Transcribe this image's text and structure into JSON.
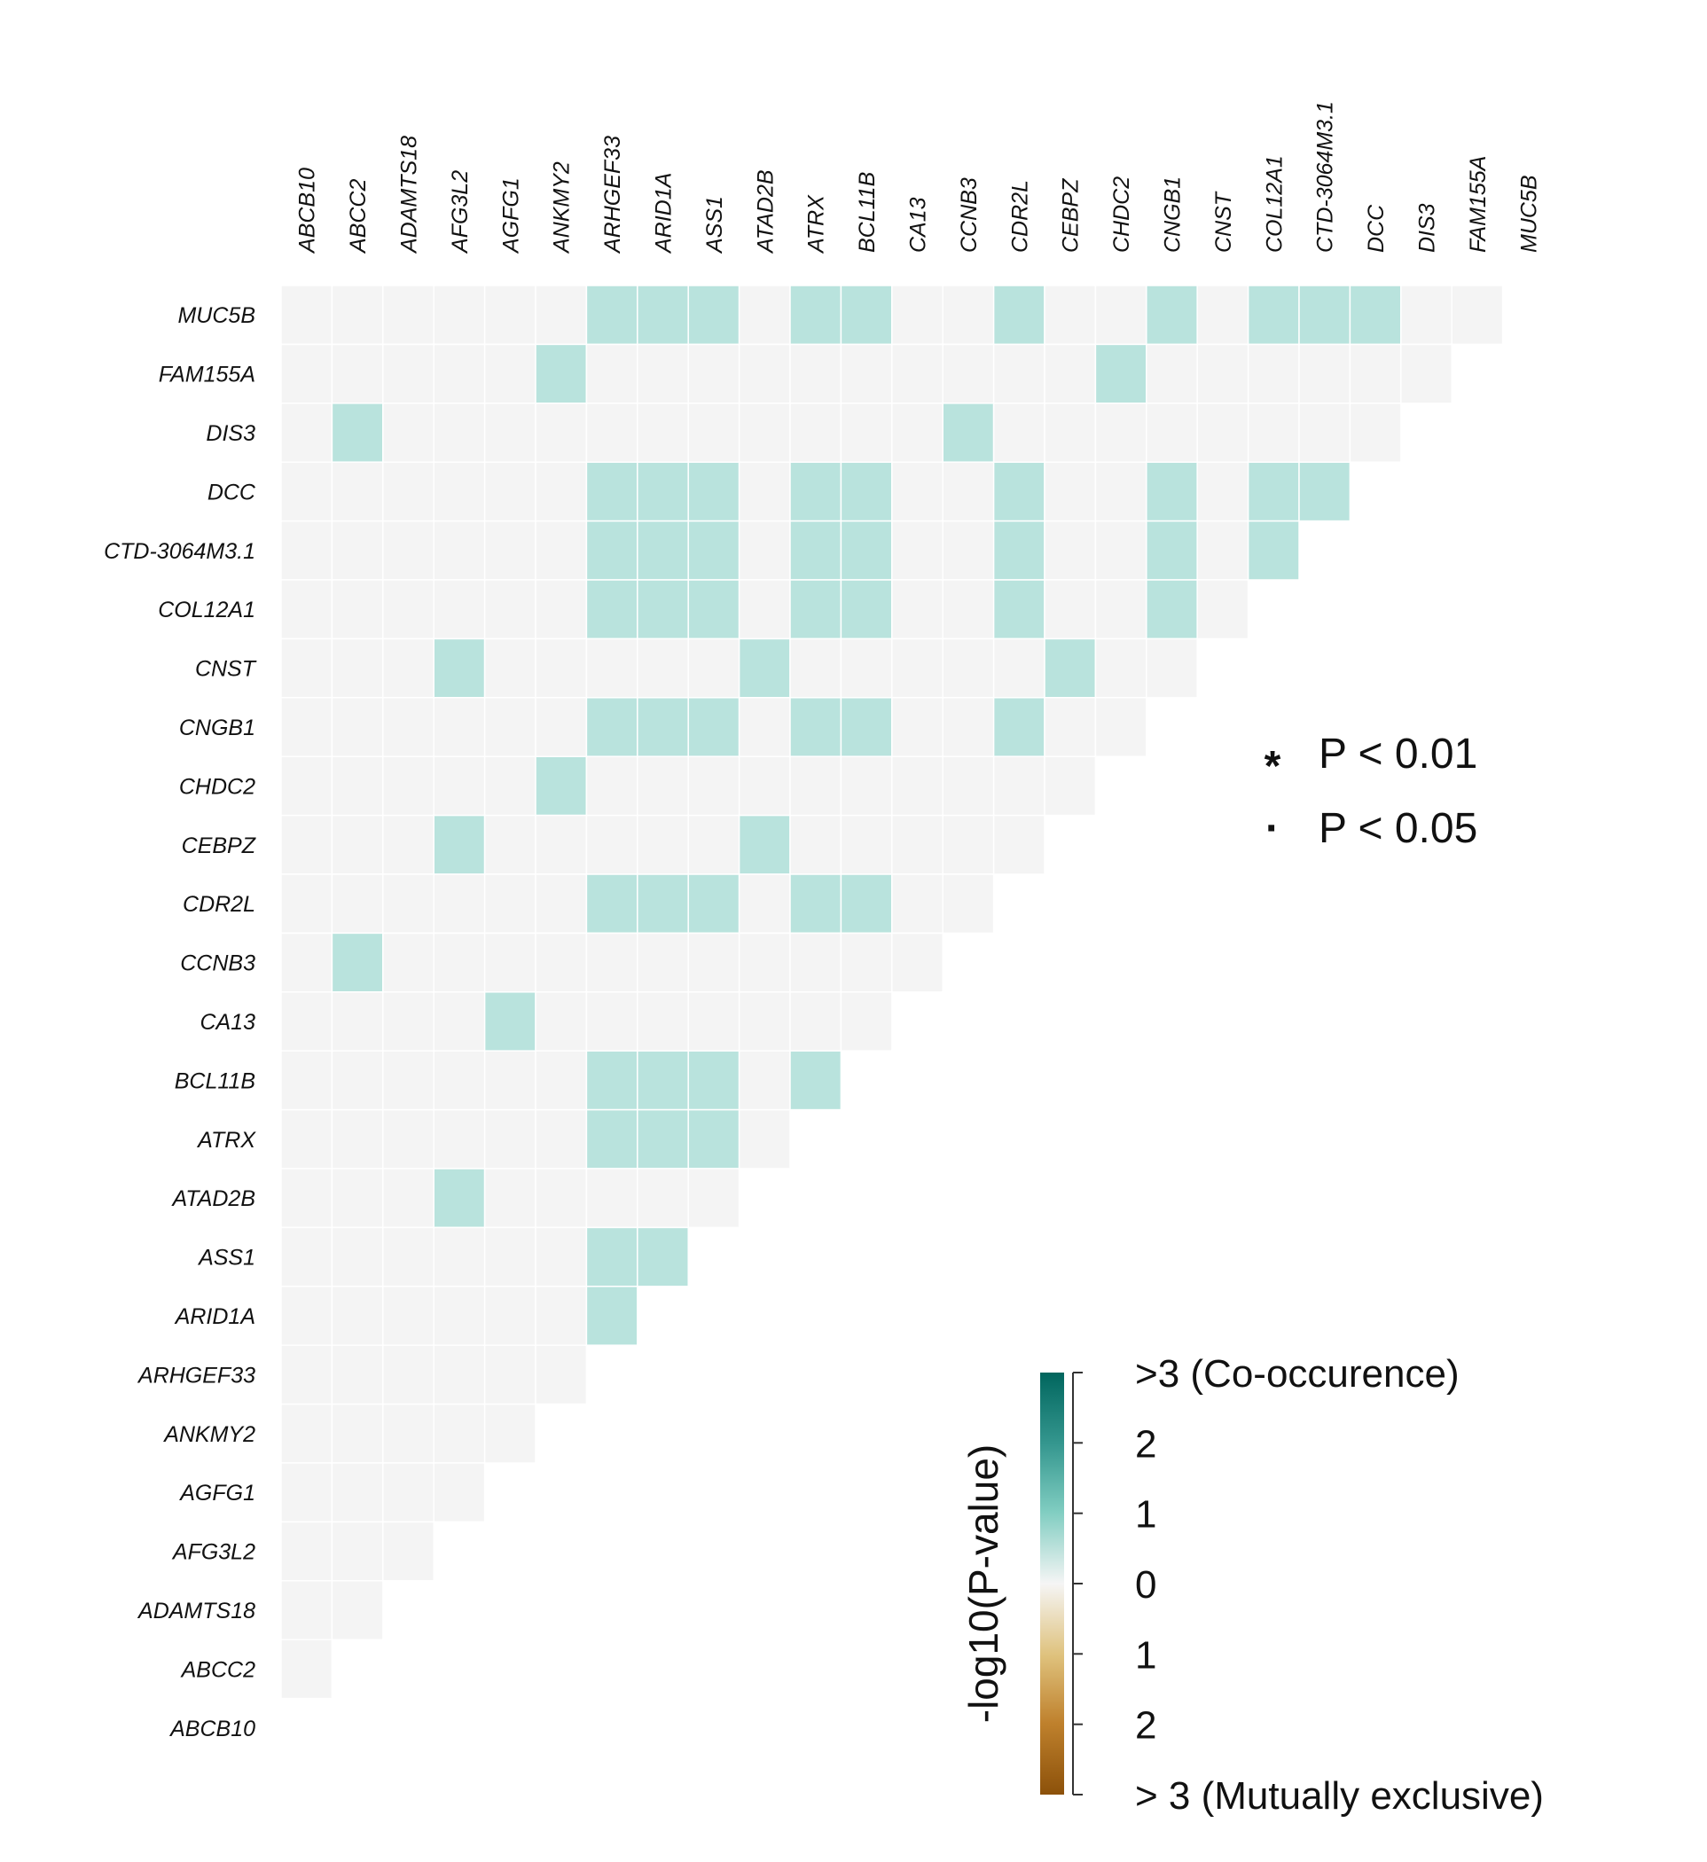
{
  "chart_data": {
    "type": "heatmap",
    "genes": [
      "ABCB10",
      "ABCC2",
      "ADAMTS18",
      "AFG3L2",
      "AGFG1",
      "ANKMY2",
      "ARHGEF33",
      "ARID1A",
      "ASS1",
      "ATAD2B",
      "ATRX",
      "BCL11B",
      "CA13",
      "CCNB3",
      "CDR2L",
      "CEBPZ",
      "CHDC2",
      "CNGB1",
      "CNST",
      "COL12A1",
      "CTD-3064M3.1",
      "DCC",
      "DIS3",
      "FAM155A",
      "MUC5B"
    ],
    "value_scale": "-log10(P-value)",
    "default_cell_value": 0,
    "significant_cell_value": 1,
    "significant_pairs": [
      [
        "MUC5B",
        "ARHGEF33"
      ],
      [
        "MUC5B",
        "ARID1A"
      ],
      [
        "MUC5B",
        "ASS1"
      ],
      [
        "MUC5B",
        "ATRX"
      ],
      [
        "MUC5B",
        "BCL11B"
      ],
      [
        "MUC5B",
        "CDR2L"
      ],
      [
        "MUC5B",
        "CNGB1"
      ],
      [
        "MUC5B",
        "COL12A1"
      ],
      [
        "MUC5B",
        "CTD-3064M3.1"
      ],
      [
        "MUC5B",
        "DCC"
      ],
      [
        "FAM155A",
        "ANKMY2"
      ],
      [
        "FAM155A",
        "CHDC2"
      ],
      [
        "DIS3",
        "ABCC2"
      ],
      [
        "DIS3",
        "CCNB3"
      ],
      [
        "DCC",
        "ARHGEF33"
      ],
      [
        "DCC",
        "ARID1A"
      ],
      [
        "DCC",
        "ASS1"
      ],
      [
        "DCC",
        "ATRX"
      ],
      [
        "DCC",
        "BCL11B"
      ],
      [
        "DCC",
        "CDR2L"
      ],
      [
        "DCC",
        "CNGB1"
      ],
      [
        "DCC",
        "COL12A1"
      ],
      [
        "DCC",
        "CTD-3064M3.1"
      ],
      [
        "CTD-3064M3.1",
        "ARHGEF33"
      ],
      [
        "CTD-3064M3.1",
        "ARID1A"
      ],
      [
        "CTD-3064M3.1",
        "ASS1"
      ],
      [
        "CTD-3064M3.1",
        "ATRX"
      ],
      [
        "CTD-3064M3.1",
        "BCL11B"
      ],
      [
        "CTD-3064M3.1",
        "CDR2L"
      ],
      [
        "CTD-3064M3.1",
        "CNGB1"
      ],
      [
        "CTD-3064M3.1",
        "COL12A1"
      ],
      [
        "COL12A1",
        "ARHGEF33"
      ],
      [
        "COL12A1",
        "ARID1A"
      ],
      [
        "COL12A1",
        "ASS1"
      ],
      [
        "COL12A1",
        "ATRX"
      ],
      [
        "COL12A1",
        "BCL11B"
      ],
      [
        "COL12A1",
        "CDR2L"
      ],
      [
        "COL12A1",
        "CNGB1"
      ],
      [
        "CNST",
        "AFG3L2"
      ],
      [
        "CNST",
        "ATAD2B"
      ],
      [
        "CNST",
        "CEBPZ"
      ],
      [
        "CNGB1",
        "ARHGEF33"
      ],
      [
        "CNGB1",
        "ARID1A"
      ],
      [
        "CNGB1",
        "ASS1"
      ],
      [
        "CNGB1",
        "ATRX"
      ],
      [
        "CNGB1",
        "BCL11B"
      ],
      [
        "CNGB1",
        "CDR2L"
      ],
      [
        "CHDC2",
        "ANKMY2"
      ],
      [
        "CEBPZ",
        "AFG3L2"
      ],
      [
        "CEBPZ",
        "ATAD2B"
      ],
      [
        "CDR2L",
        "ARHGEF33"
      ],
      [
        "CDR2L",
        "ARID1A"
      ],
      [
        "CDR2L",
        "ASS1"
      ],
      [
        "CDR2L",
        "ATRX"
      ],
      [
        "CDR2L",
        "BCL11B"
      ],
      [
        "CCNB3",
        "ABCC2"
      ],
      [
        "CA13",
        "AGFG1"
      ],
      [
        "BCL11B",
        "ARHGEF33"
      ],
      [
        "BCL11B",
        "ARID1A"
      ],
      [
        "BCL11B",
        "ASS1"
      ],
      [
        "BCL11B",
        "ATRX"
      ],
      [
        "ATRX",
        "ARHGEF33"
      ],
      [
        "ATRX",
        "ARID1A"
      ],
      [
        "ATRX",
        "ASS1"
      ],
      [
        "ATAD2B",
        "AFG3L2"
      ],
      [
        "ASS1",
        "ARHGEF33"
      ],
      [
        "ASS1",
        "ARID1A"
      ],
      [
        "ARID1A",
        "ARHGEF33"
      ]
    ],
    "colorbar": {
      "title": "-log10(P-value)",
      "range": [
        -3,
        3
      ],
      "tick_values": [
        3,
        2,
        1,
        0,
        -1,
        -2,
        -3
      ],
      "tick_labels": [
        ">3 (Co-occurence)",
        "2",
        "1",
        "0",
        "1",
        "2",
        "> 3 (Mutually exclusive)"
      ],
      "color_high": "#01665e",
      "color_mid": "#f5f5f5",
      "color_low": "#8c510a"
    },
    "significance_legend": [
      {
        "symbol": "*",
        "label": "P < 0.01"
      },
      {
        "symbol": "·",
        "label": "P < 0.05"
      }
    ]
  }
}
